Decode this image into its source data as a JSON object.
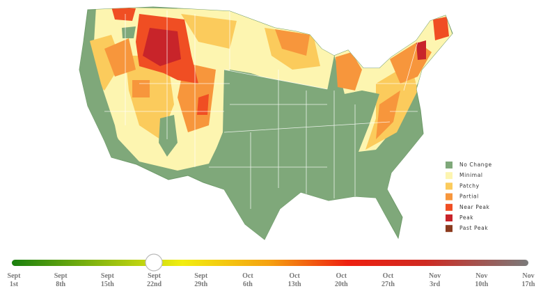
{
  "legend": {
    "items": [
      {
        "label": "No Change",
        "color": "#7fa87a"
      },
      {
        "label": "Minimal",
        "color": "#fdf5b0"
      },
      {
        "label": "Patchy",
        "color": "#fbcb5c"
      },
      {
        "label": "Partial",
        "color": "#f7963c"
      },
      {
        "label": "Near Peak",
        "color": "#f04e23"
      },
      {
        "label": "Peak",
        "color": "#c8242a"
      },
      {
        "label": "Past Peak",
        "color": "#8b3a1e"
      }
    ]
  },
  "timeline": {
    "ticks": [
      {
        "month": "Sept",
        "day": "1st"
      },
      {
        "month": "Sept",
        "day": "8th"
      },
      {
        "month": "Sept",
        "day": "15th"
      },
      {
        "month": "Sept",
        "day": "22nd"
      },
      {
        "month": "Sept",
        "day": "29th"
      },
      {
        "month": "Oct",
        "day": "6th"
      },
      {
        "month": "Oct",
        "day": "13th"
      },
      {
        "month": "Oct",
        "day": "20th"
      },
      {
        "month": "Oct",
        "day": "27th"
      },
      {
        "month": "Nov",
        "day": "3rd"
      },
      {
        "month": "Nov",
        "day": "10th"
      },
      {
        "month": "Nov",
        "day": "17th"
      }
    ]
  }
}
